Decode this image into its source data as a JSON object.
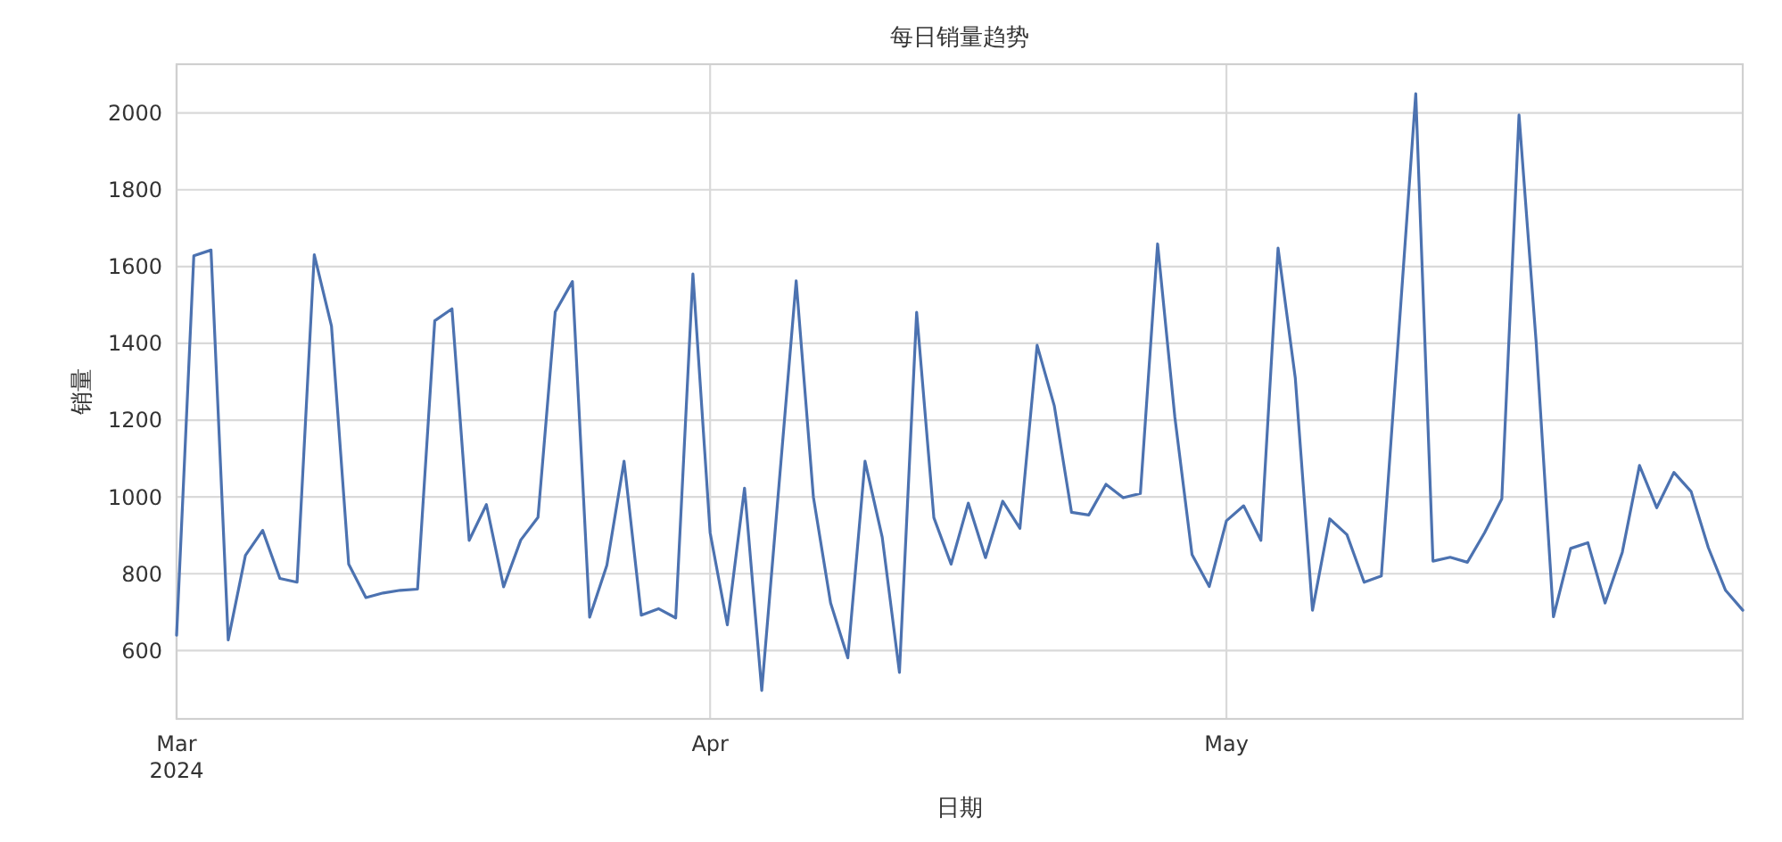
{
  "chart_data": {
    "type": "line",
    "title": "每日销量趋势",
    "xlabel": "日期",
    "ylabel": "销量",
    "x": [
      "2024-03-01",
      "2024-03-02",
      "2024-03-03",
      "2024-03-04",
      "2024-03-05",
      "2024-03-06",
      "2024-03-07",
      "2024-03-08",
      "2024-03-09",
      "2024-03-10",
      "2024-03-11",
      "2024-03-12",
      "2024-03-13",
      "2024-03-14",
      "2024-03-15",
      "2024-03-16",
      "2024-03-17",
      "2024-03-18",
      "2024-03-19",
      "2024-03-20",
      "2024-03-21",
      "2024-03-22",
      "2024-03-23",
      "2024-03-24",
      "2024-03-25",
      "2024-03-26",
      "2024-03-27",
      "2024-03-28",
      "2024-03-29",
      "2024-03-30",
      "2024-03-31",
      "2024-04-01",
      "2024-04-02",
      "2024-04-03",
      "2024-04-04",
      "2024-04-05",
      "2024-04-06",
      "2024-04-07",
      "2024-04-08",
      "2024-04-09",
      "2024-04-10",
      "2024-04-11",
      "2024-04-12",
      "2024-04-13",
      "2024-04-14",
      "2024-04-15",
      "2024-04-16",
      "2024-04-17",
      "2024-04-18",
      "2024-04-19",
      "2024-04-20",
      "2024-04-21",
      "2024-04-22",
      "2024-04-23",
      "2024-04-24",
      "2024-04-25",
      "2024-04-26",
      "2024-04-27",
      "2024-04-28",
      "2024-04-29",
      "2024-04-30",
      "2024-05-01",
      "2024-05-02",
      "2024-05-03",
      "2024-05-04",
      "2024-05-05",
      "2024-05-06",
      "2024-05-07",
      "2024-05-08",
      "2024-05-09",
      "2024-05-10",
      "2024-05-11",
      "2024-05-12",
      "2024-05-13",
      "2024-05-14",
      "2024-05-15",
      "2024-05-16",
      "2024-05-17",
      "2024-05-18",
      "2024-05-19",
      "2024-05-20",
      "2024-05-21",
      "2024-05-22",
      "2024-05-23",
      "2024-05-24",
      "2024-05-25",
      "2024-05-26",
      "2024-05-27",
      "2024-05-28",
      "2024-05-29",
      "2024-05-30",
      "2024-05-31"
    ],
    "series": [
      {
        "color": "#4c72b0",
        "values": [
          640,
          1628,
          1643,
          628,
          848,
          913,
          788,
          778,
          1631,
          1445,
          825,
          738,
          750,
          757,
          760,
          1459,
          1490,
          887,
          980,
          766,
          888,
          947,
          1482,
          1561,
          687,
          822,
          1093,
          692,
          709,
          685,
          1581,
          907,
          667,
          1023,
          496,
          1030,
          1563,
          1000,
          724,
          581,
          1093,
          895,
          543,
          1481,
          946,
          825,
          984,
          842,
          989,
          918,
          1395,
          1237,
          960,
          953,
          1033,
          998,
          1009,
          1659,
          1209,
          850,
          767,
          938,
          977,
          887,
          1648,
          1310,
          705,
          943,
          902,
          778,
          794,
          1420,
          2050,
          833,
          843,
          830,
          907,
          995,
          1995,
          1400,
          688,
          866,
          881,
          724,
          856,
          1082,
          972,
          1064,
          1014,
          868,
          757,
          705
        ]
      }
    ],
    "xlim": [
      "2024-03-01",
      "2024-05-31"
    ],
    "xticks": [
      {
        "value": "2024-03-01",
        "label": "Mar\n2024"
      },
      {
        "value": "2024-04-01",
        "label": "Apr"
      },
      {
        "value": "2024-05-01",
        "label": "May"
      }
    ],
    "ylim": [
      422,
      2127
    ],
    "yticks": [
      600,
      800,
      1000,
      1200,
      1400,
      1600,
      1800,
      2000
    ],
    "grid": true,
    "line_style": "solid",
    "marker": "none"
  }
}
